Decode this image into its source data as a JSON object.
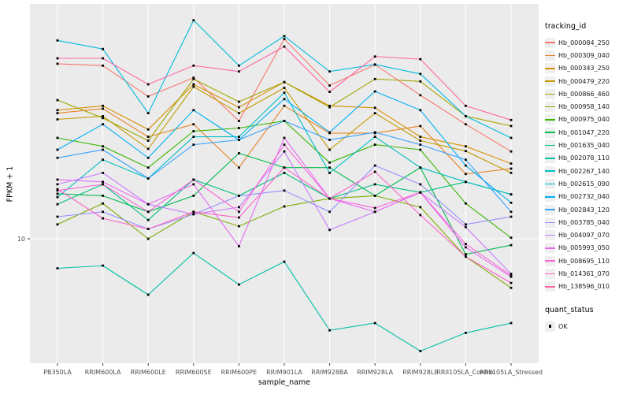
{
  "figure": {
    "background": "#ffffff",
    "panel_background": "#ebebeb",
    "grid_color": "#ffffff",
    "axis_text_color": "#4d4d4d",
    "point_color": "#000000"
  },
  "axes": {
    "x_title": "sample_name",
    "y_title": "FPKM + 1"
  },
  "legend": {
    "tracking_title": "tracking_id",
    "quant_title": "quant_status",
    "quant_label": "OK"
  },
  "chart_data": {
    "type": "line",
    "title": "",
    "xlabel": "sample_name",
    "ylabel": "FPKM + 1",
    "y_scale": "log10",
    "y_ticks": [
      {
        "value": 10,
        "label": "10"
      }
    ],
    "ylim": [
      2.9,
      95
    ],
    "grid": "major",
    "legend_position": "right",
    "point_marker": "filled-square-black",
    "categories": [
      "PB350LA",
      "RRIM600LA",
      "RRIM600LE",
      "RRIM600SE",
      "RRIM600PE",
      "RRIM901LA",
      "RRIM928BA",
      "RRIM928LA",
      "RRIM928LE",
      "RRII105LA_Control",
      "RRII105LA_Stressed"
    ],
    "series": [
      {
        "name": "Hb_000084_250",
        "color": "#F8766D",
        "values": [
          55,
          54,
          40,
          48,
          31.5,
          70,
          44.5,
          54.5,
          40.5,
          30.5,
          23.4
        ]
      },
      {
        "name": "Hb_000309_040",
        "color": "#E88526",
        "values": [
          34,
          35.5,
          27,
          30.5,
          20,
          36.5,
          28,
          28,
          30,
          18.8,
          19.8
        ]
      },
      {
        "name": "Hb_000343_250",
        "color": "#D89000",
        "values": [
          35,
          36.5,
          29,
          45,
          36,
          46,
          36.5,
          35.8,
          27,
          24.6,
          20.8
        ]
      },
      {
        "name": "Hb_000479_220",
        "color": "#C49A00",
        "values": [
          32,
          33,
          24,
          44,
          34,
          43.5,
          23.8,
          34,
          26,
          23.5,
          19
        ]
      },
      {
        "name": "Hb_000866_460",
        "color": "#A3A500",
        "values": [
          38.6,
          32.4,
          26,
          47.4,
          38,
          46,
          36,
          47.4,
          46.3,
          33,
          30
        ]
      },
      {
        "name": "Hb_000958_140",
        "color": "#7CAE00",
        "values": [
          11.5,
          14.1,
          10,
          13,
          11.3,
          13.7,
          14.8,
          15.2,
          13.6,
          8.4,
          6.2
        ]
      },
      {
        "name": "Hb_000975_040",
        "color": "#39B600",
        "values": [
          26.7,
          24.6,
          20,
          28.5,
          29.4,
          31.5,
          21,
          25,
          23.8,
          14.1,
          10.1
        ]
      },
      {
        "name": "Hb_001047_220",
        "color": "#00BB4E",
        "values": [
          15.5,
          15.2,
          13,
          15.2,
          23,
          20,
          20,
          15.2,
          20,
          8.6,
          9.4
        ]
      },
      {
        "name": "Hb_001635_040",
        "color": "#00BF7D",
        "values": [
          14,
          17,
          12,
          17.8,
          15.2,
          19,
          14.8,
          17,
          15.7,
          17.4,
          15.4
        ]
      },
      {
        "name": "Hb_002078_110",
        "color": "#00C1A3",
        "values": [
          7.5,
          7.7,
          5.8,
          8.7,
          6.4,
          8.0,
          4.1,
          4.4,
          3.35,
          4.0,
          4.4
        ]
      },
      {
        "name": "Hb_002267_140",
        "color": "#00BFC4",
        "values": [
          15,
          21.6,
          18,
          27,
          27,
          41.5,
          19,
          27,
          20,
          17.4,
          15.4
        ]
      },
      {
        "name": "Hb_002615_090",
        "color": "#00BAE0",
        "values": [
          69,
          63.5,
          34,
          84,
          54,
          72,
          51,
          54.6,
          49.8,
          33,
          26.7
        ]
      },
      {
        "name": "Hb_002732_040",
        "color": "#00B0F6",
        "values": [
          23.8,
          30.5,
          22,
          35,
          26.2,
          39,
          28.2,
          42,
          35,
          20.4,
          14.2
        ]
      },
      {
        "name": "Hb_002843_120",
        "color": "#35A2FF",
        "values": [
          22,
          23.8,
          18,
          25,
          26.2,
          31.5,
          26.2,
          28.2,
          25,
          21.6,
          13
        ]
      },
      {
        "name": "Hb_003785_040",
        "color": "#9590FF",
        "values": [
          12.4,
          13,
          11,
          12.7,
          15.2,
          16,
          13,
          20.4,
          17,
          11.5,
          12.4
        ]
      },
      {
        "name": "Hb_004097_070",
        "color": "#C77CFF",
        "values": [
          17,
          19,
          14,
          12.7,
          13.6,
          23.4,
          10.9,
          13,
          15.7,
          11.2,
          7.1
        ]
      },
      {
        "name": "Hb_005993_050",
        "color": "#E76BF3",
        "values": [
          17.8,
          17.4,
          14,
          17,
          9.3,
          26.7,
          14.8,
          13,
          15.7,
          9.2,
          6.9
        ]
      },
      {
        "name": "Hb_008695_110",
        "color": "#FA62DB",
        "values": [
          16,
          17,
          13,
          17.8,
          13,
          25,
          14.8,
          13.5,
          15.7,
          9.5,
          7
        ]
      },
      {
        "name": "Hb_014361_070",
        "color": "#FF61C9",
        "values": [
          16.2,
          12.2,
          11,
          13,
          12.3,
          20,
          14.8,
          19.2,
          12.6,
          8.4,
          6.5
        ]
      },
      {
        "name": "Hb_138596_010",
        "color": "#FF67A4",
        "values": [
          58,
          58,
          45,
          54,
          51,
          65,
          41.8,
          59,
          57.5,
          36.5,
          31.8
        ]
      }
    ]
  }
}
